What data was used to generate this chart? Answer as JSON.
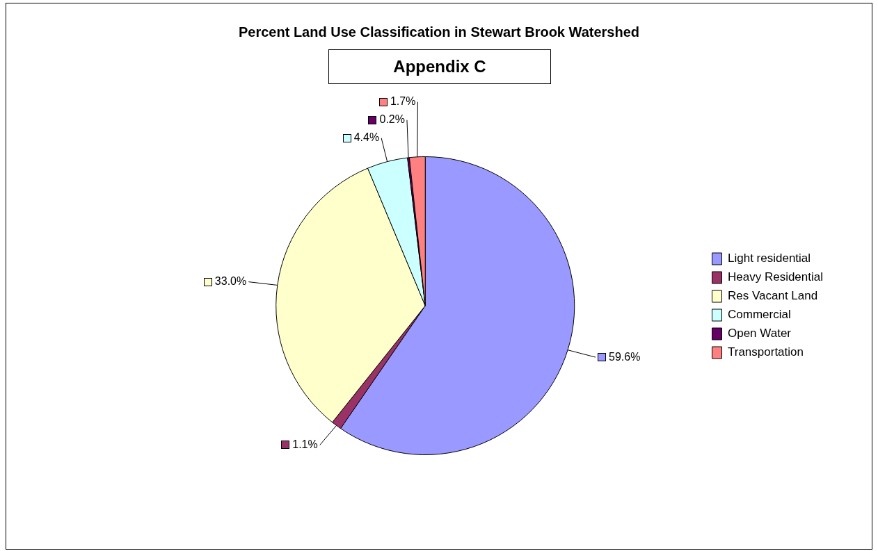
{
  "chart_data": {
    "type": "pie",
    "title": "Percent Land Use Classification in Stewart Brook Watershed",
    "subtitle": "Appendix C",
    "categories": [
      "Light residential",
      "Heavy Residential",
      "Res Vacant Land",
      "Commercial",
      "Open Water",
      "Transportation"
    ],
    "values": [
      59.6,
      1.1,
      33.0,
      4.4,
      0.2,
      1.7
    ],
    "colors": [
      "#9999ff",
      "#993366",
      "#ffffcc",
      "#ccffff",
      "#660066",
      "#ff8080"
    ],
    "value_labels": [
      "59.6%",
      "1.1%",
      "33.0%",
      "4.4%",
      "0.2%",
      "1.7%"
    ],
    "legend": "right"
  }
}
